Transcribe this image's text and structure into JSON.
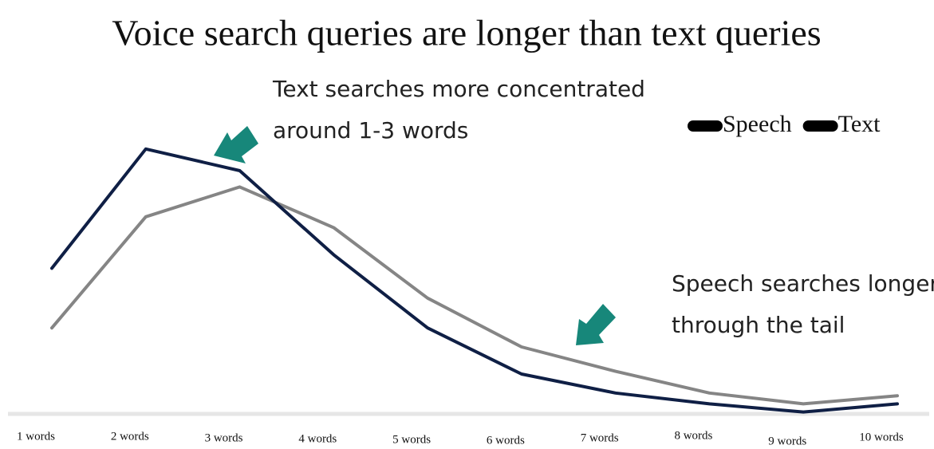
{
  "chart_data": {
    "type": "line",
    "title": "Voice search queries are longer than text queries",
    "categories": [
      "1 words",
      "2 words",
      "3 words",
      "4 words",
      "5 words",
      "6 words",
      "7 words",
      "8 words",
      "9 words",
      "10 words"
    ],
    "series": [
      {
        "name": "Speech",
        "color": "#858585",
        "values": [
          32,
          73,
          84,
          69,
          43,
          25,
          16,
          8,
          4,
          7
        ]
      },
      {
        "name": "Text",
        "color": "#0f1f45",
        "values": [
          54,
          98,
          90,
          59,
          32,
          15,
          8,
          4,
          1,
          4
        ]
      }
    ],
    "annotations": [
      {
        "lines": [
          "Text searches more concentrated",
          "around 1-3 words"
        ]
      },
      {
        "lines": [
          "Speech searches longer",
          "through the tail"
        ]
      }
    ],
    "legend": "top-right"
  }
}
